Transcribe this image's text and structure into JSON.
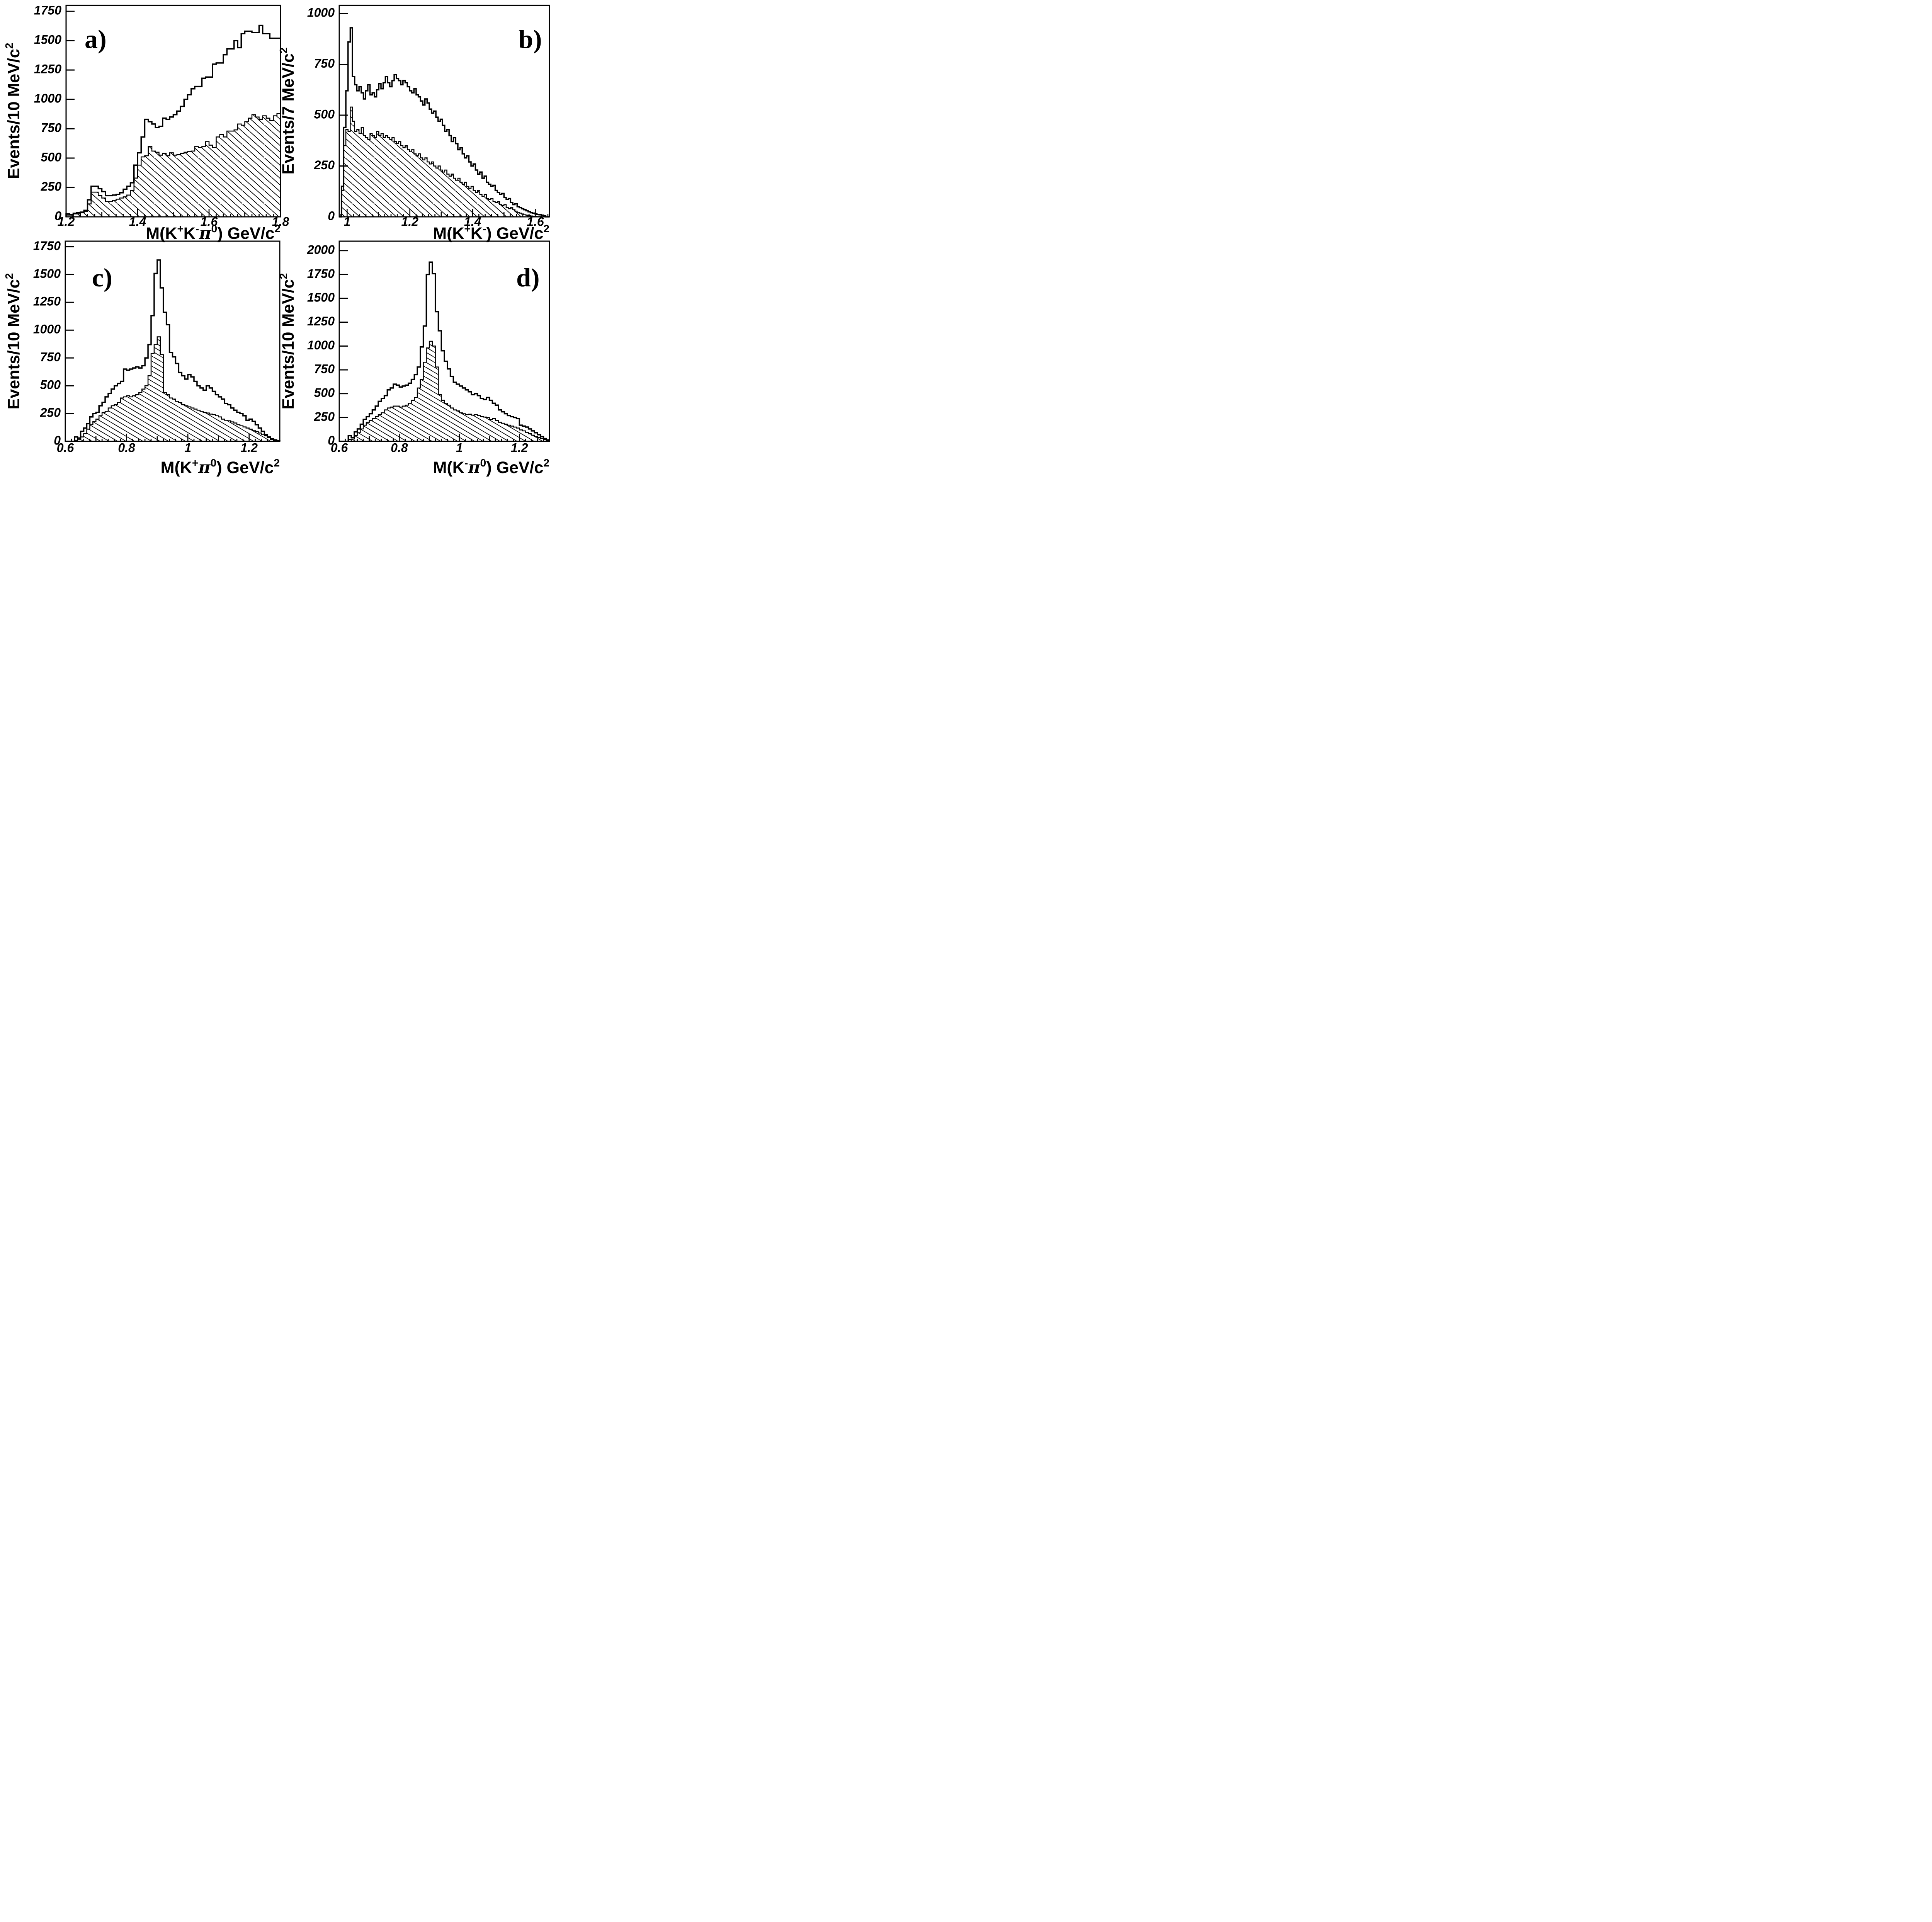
{
  "figure": {
    "background": "#ffffff",
    "ink": "#000000",
    "description": "Four-panel invariant-mass histogram figure; each panel shows an open (outline) histogram and a hatched (diagonal-line filled) histogram.",
    "panel_letters": [
      "a)",
      "b)",
      "c)",
      "d)"
    ]
  },
  "chart_data": [
    {
      "id": "a",
      "type": "bar",
      "subtype": "step_histogram_pair",
      "panel_label": "a)",
      "x_title": "M(K⁺K⁻π⁰) GeV/c²",
      "y_title": "Events/10 MeV/c²",
      "xlim": [
        1.2,
        1.8
      ],
      "ylim": [
        0,
        1800
      ],
      "grid": false,
      "legend": "none",
      "x_tick_values": [
        1.2,
        1.4,
        1.6,
        1.8
      ],
      "x_tick_labels": [
        "1.2",
        "1.4",
        "1.6",
        "1.8"
      ],
      "x_medium_tick_step": 0.1,
      "x_minor_tick_step": 0.02,
      "y_tick_step": 250,
      "y_tick_labels": [
        "0",
        "250",
        "500",
        "750",
        "1000",
        "1250",
        "1500",
        "1750"
      ],
      "bin_start": 1.2,
      "bin_width": 0.01,
      "series": [
        {
          "name": "open",
          "style": "open-outline",
          "values": [
            25,
            20,
            30,
            35,
            40,
            55,
            145,
            260,
            260,
            240,
            215,
            180,
            180,
            185,
            190,
            205,
            235,
            260,
            290,
            440,
            545,
            680,
            830,
            810,
            790,
            760,
            770,
            840,
            830,
            850,
            870,
            900,
            940,
            1000,
            1040,
            1090,
            1110,
            1110,
            1180,
            1190,
            1190,
            1300,
            1310,
            1310,
            1380,
            1430,
            1430,
            1500,
            1440,
            1560,
            1580,
            1580,
            1570,
            1570,
            1630,
            1560,
            1560,
            1520,
            1520,
            1520
          ]
        },
        {
          "name": "hatched",
          "style": "hatched-fill",
          "hatch_angle_deg": 42,
          "values": [
            15,
            15,
            25,
            25,
            35,
            45,
            110,
            210,
            210,
            180,
            160,
            130,
            130,
            140,
            150,
            160,
            170,
            185,
            225,
            330,
            440,
            510,
            520,
            600,
            560,
            550,
            525,
            540,
            520,
            545,
            525,
            530,
            540,
            550,
            555,
            560,
            600,
            590,
            600,
            640,
            610,
            590,
            680,
            700,
            680,
            730,
            730,
            740,
            790,
            780,
            810,
            840,
            870,
            850,
            830,
            860,
            840,
            820,
            860,
            880
          ]
        }
      ]
    },
    {
      "id": "b",
      "type": "bar",
      "subtype": "step_histogram_pair",
      "panel_label": "b)",
      "x_title": "M(K⁺K⁻) GeV/c²",
      "y_title": "Events/7 MeV/c²",
      "xlim": [
        0.975,
        1.645
      ],
      "ylim": [
        0,
        1040
      ],
      "grid": false,
      "legend": "none",
      "x_tick_values": [
        1.0,
        1.2,
        1.4,
        1.6
      ],
      "x_tick_labels": [
        "1",
        "1.2",
        "1.4",
        "1.6"
      ],
      "x_medium_tick_step": 0.1,
      "x_minor_tick_step": 0.02,
      "y_tick_step": 250,
      "y_tick_labels": [
        "0",
        "250",
        "500",
        "750",
        "1000"
      ],
      "bin_start": 0.982,
      "bin_width": 0.007,
      "series": [
        {
          "name": "open",
          "style": "open-outline",
          "values": [
            150,
            440,
            620,
            860,
            930,
            690,
            650,
            620,
            640,
            610,
            580,
            620,
            650,
            600,
            610,
            590,
            625,
            655,
            630,
            660,
            690,
            660,
            640,
            670,
            700,
            680,
            670,
            650,
            670,
            660,
            640,
            620,
            610,
            630,
            600,
            590,
            570,
            550,
            580,
            560,
            530,
            510,
            520,
            490,
            470,
            480,
            450,
            420,
            430,
            400,
            370,
            390,
            360,
            330,
            340,
            310,
            290,
            300,
            270,
            250,
            260,
            230,
            210,
            220,
            190,
            200,
            170,
            160,
            150,
            155,
            130,
            120,
            110,
            115,
            95,
            85,
            90,
            70,
            60,
            65,
            50,
            45,
            40,
            35,
            30,
            25,
            20,
            18,
            15,
            12,
            10,
            8,
            5
          ]
        },
        {
          "name": "hatched",
          "style": "hatched-fill",
          "hatch_angle_deg": 42,
          "values": [
            130,
            350,
            430,
            420,
            540,
            470,
            420,
            430,
            410,
            440,
            400,
            390,
            380,
            410,
            400,
            390,
            420,
            400,
            410,
            390,
            400,
            390,
            380,
            390,
            370,
            360,
            370,
            350,
            340,
            350,
            330,
            320,
            330,
            310,
            300,
            310,
            290,
            280,
            290,
            270,
            260,
            270,
            250,
            240,
            250,
            230,
            220,
            230,
            210,
            200,
            210,
            190,
            180,
            190,
            170,
            160,
            170,
            150,
            140,
            150,
            130,
            120,
            130,
            110,
            100,
            110,
            90,
            85,
            90,
            75,
            70,
            75,
            60,
            55,
            60,
            45,
            40,
            45,
            35,
            28,
            22,
            18,
            14,
            10,
            8,
            6,
            4,
            3,
            2,
            1,
            1,
            0,
            0
          ]
        }
      ]
    },
    {
      "id": "c",
      "type": "bar",
      "subtype": "step_histogram_pair",
      "panel_label": "c)",
      "x_title": "M(K⁺π⁰) GeV/c²",
      "y_title": "Events/10 MeV/c²",
      "xlim": [
        0.6,
        1.3
      ],
      "ylim": [
        0,
        1800
      ],
      "grid": false,
      "legend": "none",
      "x_tick_values": [
        0.6,
        0.8,
        1.0,
        1.2
      ],
      "x_tick_labels": [
        "0.6",
        "0.8",
        "1",
        "1.2"
      ],
      "x_medium_tick_step": 0.1,
      "x_minor_tick_step": 0.02,
      "y_tick_step": 250,
      "y_tick_labels": [
        "0",
        "250",
        "500",
        "750",
        "1000",
        "1250",
        "1500",
        "1750"
      ],
      "bin_start": 0.6,
      "bin_width": 0.01,
      "series": [
        {
          "name": "open",
          "style": "open-outline",
          "values": [
            0,
            0,
            0,
            40,
            30,
            90,
            120,
            160,
            220,
            250,
            260,
            320,
            350,
            400,
            430,
            470,
            500,
            520,
            540,
            650,
            640,
            650,
            660,
            670,
            660,
            680,
            750,
            870,
            1130,
            1510,
            1630,
            1380,
            1160,
            1050,
            800,
            760,
            700,
            620,
            590,
            560,
            600,
            580,
            540,
            500,
            480,
            460,
            500,
            480,
            450,
            420,
            400,
            380,
            340,
            330,
            300,
            280,
            260,
            250,
            230,
            190,
            200,
            180,
            150,
            120,
            90,
            60,
            40,
            20,
            10,
            5
          ]
        },
        {
          "name": "hatched",
          "style": "hatched-fill",
          "hatch_angle_deg": 30,
          "values": [
            0,
            0,
            0,
            10,
            15,
            40,
            70,
            110,
            150,
            180,
            200,
            230,
            260,
            270,
            300,
            320,
            330,
            350,
            390,
            400,
            410,
            400,
            410,
            420,
            440,
            470,
            500,
            590,
            790,
            870,
            940,
            780,
            440,
            420,
            390,
            380,
            360,
            350,
            330,
            320,
            310,
            300,
            290,
            280,
            270,
            260,
            255,
            245,
            240,
            230,
            220,
            200,
            190,
            185,
            175,
            165,
            150,
            140,
            130,
            120,
            110,
            100,
            90,
            75,
            60,
            50,
            35,
            25,
            15,
            5
          ]
        }
      ]
    },
    {
      "id": "d",
      "type": "bar",
      "subtype": "step_histogram_pair",
      "panel_label": "d)",
      "x_title": "M(K⁻π⁰) GeV/c²",
      "y_title": "Events/10 MeV/c²",
      "xlim": [
        0.6,
        1.3
      ],
      "ylim": [
        0,
        2100
      ],
      "grid": false,
      "legend": "none",
      "x_tick_values": [
        0.6,
        0.8,
        1.0,
        1.2
      ],
      "x_tick_labels": [
        "0.6",
        "0.8",
        "1",
        "1.2"
      ],
      "x_medium_tick_step": 0.1,
      "x_minor_tick_step": 0.02,
      "y_tick_step": 250,
      "y_tick_labels": [
        "0",
        "250",
        "500",
        "750",
        "1000",
        "1250",
        "1500",
        "1750",
        "2000"
      ],
      "bin_start": 0.6,
      "bin_width": 0.01,
      "series": [
        {
          "name": "open",
          "style": "open-outline",
          "values": [
            0,
            0,
            0,
            60,
            40,
            100,
            130,
            180,
            230,
            260,
            290,
            330,
            370,
            420,
            450,
            480,
            540,
            560,
            600,
            590,
            570,
            580,
            590,
            610,
            650,
            700,
            780,
            990,
            1210,
            1750,
            1880,
            1760,
            1360,
            1160,
            950,
            840,
            760,
            680,
            620,
            600,
            580,
            560,
            540,
            520,
            490,
            500,
            480,
            450,
            440,
            460,
            430,
            400,
            380,
            330,
            310,
            290,
            270,
            260,
            250,
            240,
            170,
            160,
            150,
            130,
            110,
            90,
            70,
            50,
            30,
            15
          ]
        },
        {
          "name": "hatched",
          "style": "hatched-fill",
          "hatch_angle_deg": 30,
          "values": [
            0,
            0,
            0,
            20,
            25,
            60,
            90,
            130,
            170,
            200,
            220,
            240,
            260,
            280,
            300,
            330,
            350,
            360,
            370,
            370,
            360,
            370,
            380,
            400,
            430,
            460,
            560,
            650,
            830,
            980,
            1050,
            1000,
            780,
            490,
            430,
            400,
            380,
            350,
            330,
            320,
            300,
            290,
            280,
            285,
            275,
            280,
            270,
            260,
            255,
            250,
            230,
            240,
            220,
            200,
            190,
            180,
            170,
            160,
            150,
            140,
            120,
            110,
            95,
            80,
            65,
            50,
            40,
            30,
            20,
            10
          ]
        }
      ]
    }
  ]
}
